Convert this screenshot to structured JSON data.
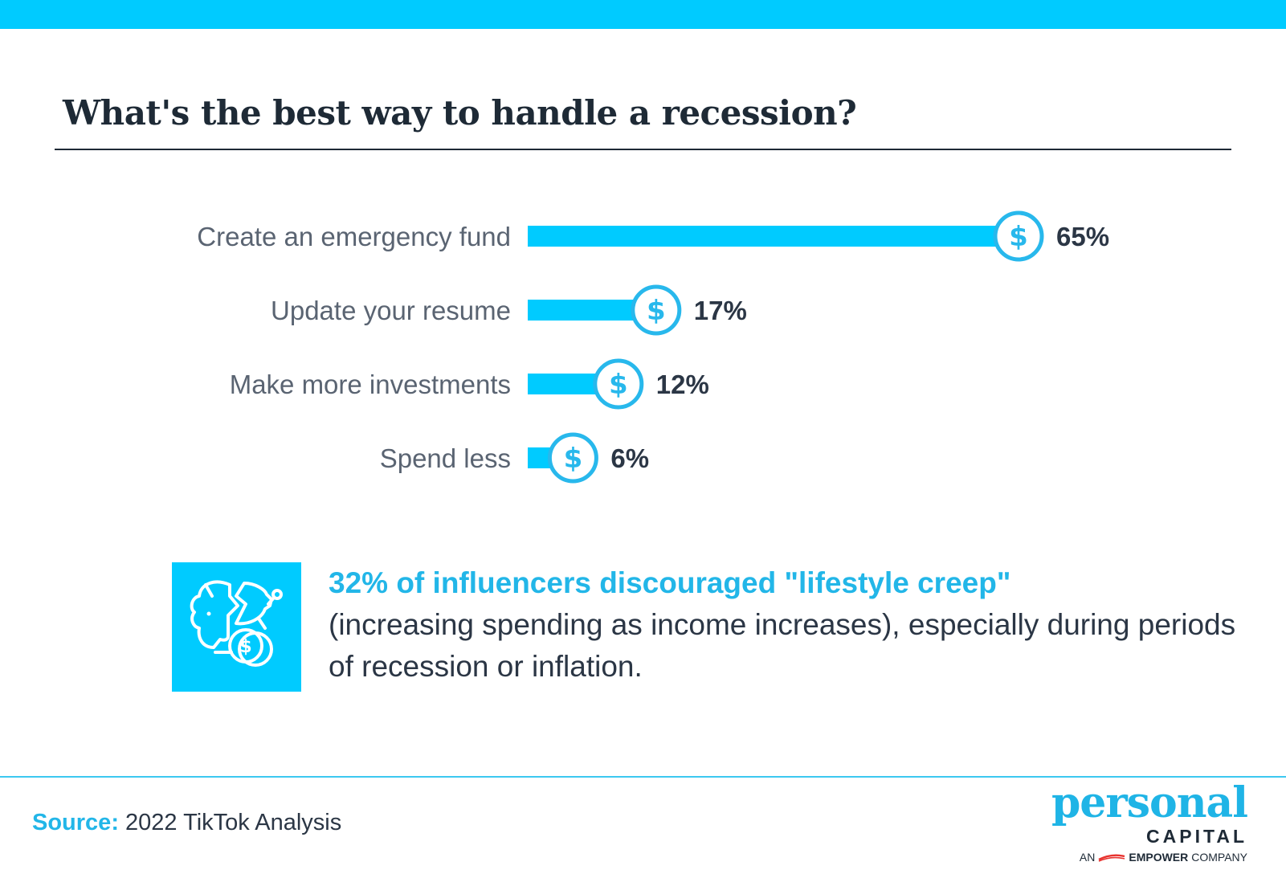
{
  "title": "What's the best way to handle a recession?",
  "chart_data": {
    "type": "bar",
    "orientation": "horizontal",
    "categories": [
      "Create an emergency fund",
      "Update your resume",
      "Make more investments",
      "Spend less"
    ],
    "values": [
      65,
      17,
      12,
      6
    ],
    "value_labels": [
      "65%",
      "17%",
      "12%",
      "6%"
    ],
    "unit": "%",
    "marker_icon": "dollar-coin-icon",
    "title": "What's the best way to handle a recession?",
    "xlabel": "",
    "ylabel": "",
    "grid": false,
    "legend": "none"
  },
  "callout": {
    "icon": "broken-piggy-bank-icon",
    "highlight": "32% of influencers discouraged \"lifestyle creep\"",
    "body": "(increasing spending as income increases), especially during periods of recession or inflation."
  },
  "source": {
    "label": "Source:",
    "text": "2022 TikTok Analysis"
  },
  "logo": {
    "personal": "personal",
    "capital": "CAPITAL",
    "an": "AN",
    "empower": "EMPOWER",
    "company": "COMPANY"
  },
  "colors": {
    "accent": "#00cbff",
    "coin_ring": "#28b8ec",
    "text_dark": "#1e2a36",
    "text_label": "#5a6472"
  }
}
